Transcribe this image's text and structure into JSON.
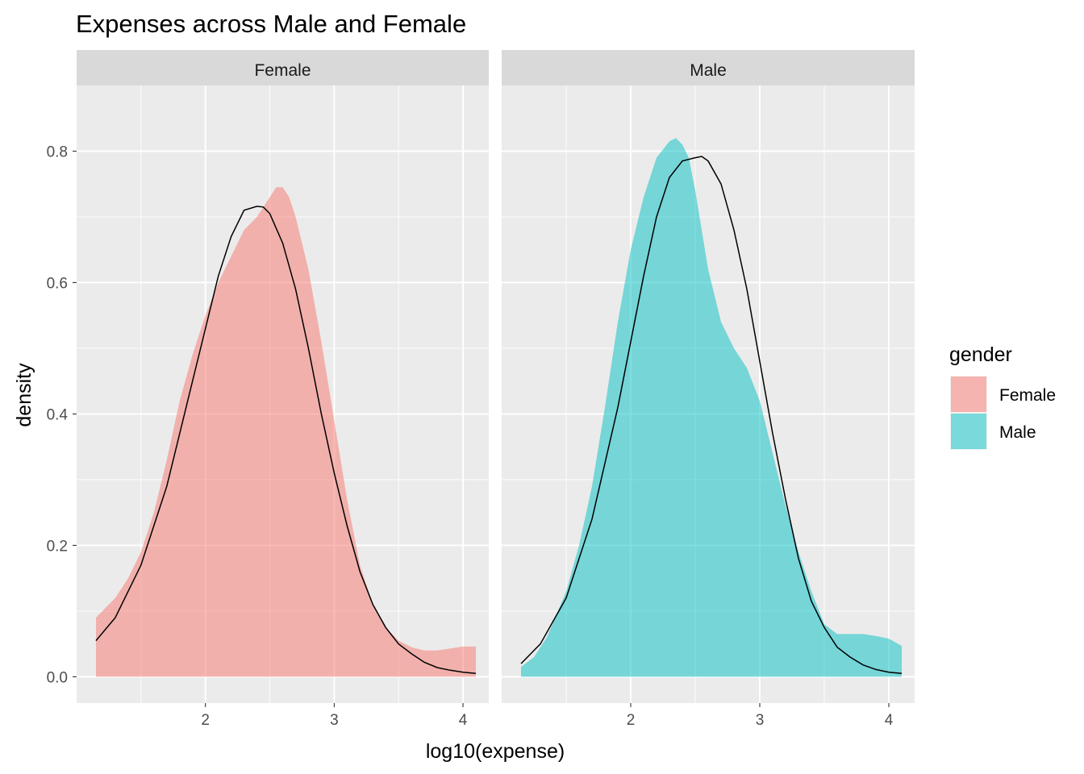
{
  "chart_data": {
    "type": "area",
    "title": "Expenses across Male and Female",
    "xlabel": "log10(expense)",
    "ylabel": "density",
    "xlim": [
      1.0,
      4.2
    ],
    "ylim": [
      -0.04,
      0.9
    ],
    "x_ticks": [
      2,
      3,
      4
    ],
    "y_ticks": [
      0.0,
      0.2,
      0.4,
      0.6,
      0.8
    ],
    "y_tick_labels": [
      "0.0",
      "0.2",
      "0.4",
      "0.6",
      "0.8"
    ],
    "grid": true,
    "legend": {
      "title": "gender",
      "position": "right",
      "entries": [
        {
          "label": "Female",
          "color": "#F8766D"
        },
        {
          "label": "Male",
          "color": "#00BFC4"
        }
      ]
    },
    "panels": [
      {
        "strip": "Female",
        "fill_color": "#F8766D",
        "density_x": [
          1.15,
          1.3,
          1.4,
          1.5,
          1.6,
          1.7,
          1.8,
          1.9,
          2.0,
          2.1,
          2.2,
          2.3,
          2.4,
          2.5,
          2.55,
          2.6,
          2.65,
          2.7,
          2.8,
          2.9,
          3.0,
          3.1,
          3.2,
          3.3,
          3.4,
          3.5,
          3.6,
          3.7,
          3.8,
          3.9,
          4.0,
          4.1
        ],
        "density_y": [
          0.09,
          0.12,
          0.15,
          0.19,
          0.25,
          0.33,
          0.42,
          0.49,
          0.55,
          0.6,
          0.64,
          0.68,
          0.7,
          0.73,
          0.745,
          0.745,
          0.73,
          0.7,
          0.62,
          0.51,
          0.39,
          0.27,
          0.17,
          0.11,
          0.075,
          0.055,
          0.045,
          0.04,
          0.04,
          0.043,
          0.046,
          0.046
        ],
        "normal_curve_x": [
          1.15,
          1.3,
          1.5,
          1.7,
          1.9,
          2.0,
          2.1,
          2.2,
          2.3,
          2.4,
          2.45,
          2.5,
          2.6,
          2.7,
          2.8,
          2.9,
          3.0,
          3.1,
          3.2,
          3.3,
          3.4,
          3.5,
          3.6,
          3.7,
          3.8,
          3.9,
          4.0,
          4.1
        ],
        "normal_curve_y": [
          0.055,
          0.09,
          0.17,
          0.29,
          0.45,
          0.53,
          0.61,
          0.67,
          0.71,
          0.716,
          0.715,
          0.705,
          0.66,
          0.59,
          0.5,
          0.4,
          0.31,
          0.23,
          0.16,
          0.11,
          0.075,
          0.05,
          0.035,
          0.022,
          0.014,
          0.01,
          0.007,
          0.005
        ]
      },
      {
        "strip": "Male",
        "fill_color": "#00BFC4",
        "density_x": [
          1.15,
          1.25,
          1.35,
          1.5,
          1.6,
          1.7,
          1.8,
          1.9,
          2.0,
          2.1,
          2.2,
          2.3,
          2.35,
          2.4,
          2.45,
          2.5,
          2.6,
          2.7,
          2.8,
          2.9,
          3.0,
          3.1,
          3.2,
          3.3,
          3.4,
          3.5,
          3.6,
          3.7,
          3.8,
          3.9,
          4.0,
          4.1
        ],
        "density_y": [
          0.015,
          0.03,
          0.06,
          0.13,
          0.2,
          0.29,
          0.41,
          0.54,
          0.65,
          0.73,
          0.79,
          0.815,
          0.82,
          0.81,
          0.79,
          0.74,
          0.62,
          0.54,
          0.5,
          0.47,
          0.42,
          0.34,
          0.26,
          0.19,
          0.13,
          0.08,
          0.065,
          0.065,
          0.065,
          0.062,
          0.058,
          0.047
        ],
        "normal_curve_x": [
          1.15,
          1.3,
          1.5,
          1.7,
          1.9,
          2.0,
          2.1,
          2.2,
          2.3,
          2.4,
          2.5,
          2.55,
          2.6,
          2.7,
          2.8,
          2.9,
          3.0,
          3.1,
          3.2,
          3.3,
          3.4,
          3.5,
          3.6,
          3.7,
          3.8,
          3.9,
          4.0,
          4.1
        ],
        "normal_curve_y": [
          0.02,
          0.05,
          0.12,
          0.24,
          0.41,
          0.51,
          0.61,
          0.7,
          0.76,
          0.785,
          0.79,
          0.792,
          0.785,
          0.75,
          0.68,
          0.59,
          0.48,
          0.37,
          0.27,
          0.18,
          0.115,
          0.075,
          0.045,
          0.03,
          0.018,
          0.011,
          0.007,
          0.005
        ]
      }
    ]
  }
}
